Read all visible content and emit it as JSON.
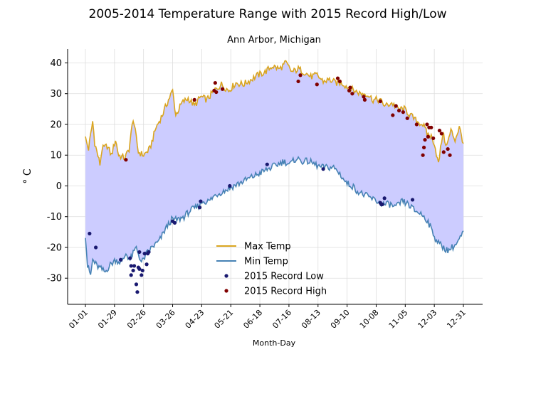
{
  "chart_data": {
    "type": "line",
    "title": "2005-2014 Temperature Range with 2015 Record High/Low",
    "subtitle": "Ann Arbor, Michigan",
    "xlabel": "Month-Day",
    "ylabel": "° C",
    "xlim": [
      1,
      365
    ],
    "ylim": [
      -38.5,
      44.5
    ],
    "x_ticks": [
      {
        "day": 1,
        "label": "01-01"
      },
      {
        "day": 29,
        "label": "01-29"
      },
      {
        "day": 57,
        "label": "02-26"
      },
      {
        "day": 85,
        "label": "03-26"
      },
      {
        "day": 113,
        "label": "04-23"
      },
      {
        "day": 141,
        "label": "05-21"
      },
      {
        "day": 169,
        "label": "06-18"
      },
      {
        "day": 197,
        "label": "07-16"
      },
      {
        "day": 225,
        "label": "08-13"
      },
      {
        "day": 253,
        "label": "09-10"
      },
      {
        "day": 281,
        "label": "10-08"
      },
      {
        "day": 309,
        "label": "11-05"
      },
      {
        "day": 337,
        "label": "12-03"
      },
      {
        "day": 365,
        "label": "12-31"
      }
    ],
    "y_ticks": [
      40,
      30,
      20,
      10,
      0,
      -10,
      -20,
      -30
    ],
    "grid": true,
    "legend_position": "lower-center",
    "colors": {
      "max": "#DAA520",
      "min": "#4682B4",
      "fill": "#CCCCFF",
      "record_low": "#191970",
      "record_high": "#800000"
    },
    "series": [
      {
        "name": "Max Temp",
        "x": [
          1,
          4,
          8,
          10,
          15,
          17,
          22,
          26,
          30,
          33,
          39,
          43,
          47,
          52,
          57,
          63,
          69,
          75,
          81,
          85,
          88,
          94,
          100,
          106,
          112,
          118,
          125,
          132,
          139,
          146,
          153,
          160,
          167,
          174,
          181,
          188,
          194,
          200,
          206,
          212,
          218,
          224,
          230,
          236,
          242,
          248,
          254,
          260,
          266,
          272,
          278,
          284,
          290,
          296,
          302,
          308,
          314,
          320,
          326,
          330,
          334,
          337,
          341,
          345,
          349,
          353,
          357,
          361,
          365
        ],
        "values": [
          15.5,
          12,
          21,
          14,
          7,
          12,
          13,
          10,
          15,
          10,
          9,
          12,
          22,
          11,
          10,
          12,
          19,
          23,
          28,
          31,
          23,
          27,
          28.5,
          26,
          29,
          28,
          31,
          33,
          31,
          33.5,
          33,
          34.5,
          36,
          37,
          39,
          38,
          40,
          37,
          38,
          37,
          35.5,
          36,
          34,
          34.5,
          33.5,
          33.5,
          32,
          31,
          30,
          30,
          28,
          28,
          26,
          27,
          25,
          25,
          23,
          21,
          20,
          17,
          16,
          14,
          7,
          17,
          13,
          18,
          15,
          19,
          14
        ]
      },
      {
        "name": "Min Temp",
        "x": [
          1,
          3,
          6,
          8,
          12,
          16,
          20,
          24,
          30,
          36,
          40,
          44,
          50,
          55,
          60,
          65,
          72,
          78,
          84,
          90,
          96,
          102,
          108,
          114,
          120,
          126,
          132,
          138,
          144,
          150,
          156,
          162,
          168,
          174,
          180,
          186,
          192,
          198,
          204,
          210,
          216,
          222,
          228,
          234,
          240,
          246,
          252,
          258,
          264,
          270,
          276,
          282,
          288,
          294,
          300,
          306,
          312,
          318,
          324,
          330,
          334,
          338,
          342,
          346,
          350,
          354,
          358,
          362,
          365
        ],
        "values": [
          -16,
          -26,
          -29,
          -24,
          -26,
          -27,
          -28,
          -26,
          -24,
          -25,
          -22,
          -24,
          -20,
          -25,
          -22,
          -20,
          -18,
          -14,
          -11,
          -11,
          -10,
          -8,
          -7,
          -5,
          -5,
          -3,
          -2,
          -1,
          0,
          1,
          2,
          3,
          4,
          5,
          6,
          7,
          8,
          7,
          9,
          8,
          8,
          7,
          6,
          6,
          6,
          4,
          1,
          0,
          -2,
          -3,
          -4,
          -5,
          -6,
          -6,
          -7,
          -5,
          -6,
          -8,
          -9,
          -11,
          -14,
          -17,
          -19,
          -20,
          -21,
          -20,
          -19,
          -17,
          -15
        ]
      }
    ],
    "scatter": [
      {
        "name": "2015 Record Low",
        "x": [
          5,
          11,
          35,
          44,
          45,
          45,
          47,
          48,
          50,
          51,
          52,
          53,
          53,
          55,
          56,
          58,
          60,
          61,
          62,
          85,
          87,
          111,
          112,
          140,
          176,
          230,
          285,
          286,
          287,
          289,
          316
        ],
        "values": [
          -15.5,
          -20,
          -24,
          -23.5,
          -26,
          -29,
          -27.5,
          -26,
          -32,
          -34.5,
          -26.5,
          -21.5,
          -27,
          -29,
          -27.5,
          -22,
          -25.5,
          -22,
          -21.5,
          -11.5,
          -12,
          -7,
          -5,
          0,
          7,
          5.5,
          -5.5,
          -6,
          -6,
          -4,
          -4.5
        ]
      },
      {
        "name": "2015 Record High",
        "x": [
          40,
          106,
          125,
          126,
          127,
          133,
          206,
          208,
          224,
          244,
          246,
          255,
          256,
          258,
          269,
          270,
          285,
          297,
          300,
          303,
          307,
          311,
          320,
          326,
          327,
          328,
          330,
          331,
          332,
          334,
          336,
          342,
          344,
          346,
          350,
          352
        ],
        "values": [
          8.5,
          28,
          31,
          33.5,
          30.5,
          31.5,
          34,
          36,
          33,
          35,
          34,
          31,
          32,
          30,
          29,
          28,
          27.5,
          23,
          26,
          24.5,
          24,
          22,
          20,
          10,
          12.5,
          15,
          20,
          16,
          19,
          19,
          15.5,
          18,
          17,
          11,
          12,
          10
        ]
      }
    ],
    "legend": [
      "Max Temp",
      "Min Temp",
      "2015 Record Low",
      "2015 Record High"
    ]
  }
}
